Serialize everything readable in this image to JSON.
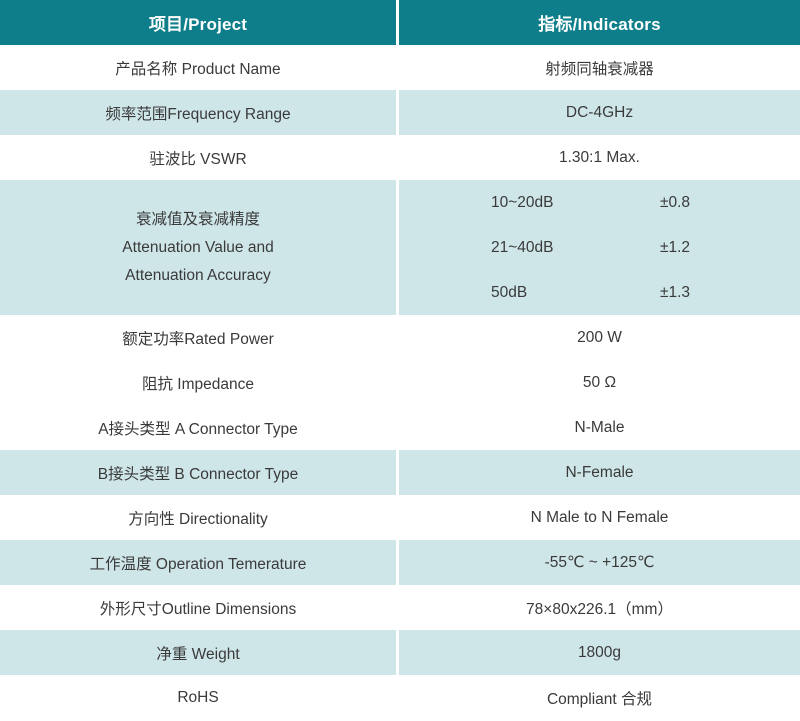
{
  "colors": {
    "header_bg": "#0e7e8a",
    "header_text": "#ffffff",
    "row_highlight_bg": "#cfe6e9",
    "body_text": "#3a3a3a"
  },
  "header": {
    "project_label": "项目/Project",
    "indicators_label": "指标/Indicators"
  },
  "rows": {
    "product_name": {
      "label": "产品名称 Product Name",
      "value": "射频同轴衰减器"
    },
    "frequency_range": {
      "label": "频率范围Frequency Range",
      "value": "DC-4GHz"
    },
    "vswr": {
      "label": "驻波比 VSWR",
      "value": "1.30:1 Max."
    },
    "attenuation": {
      "label_lines": [
        "衰减值及衰减精度",
        "Attenuation Value and",
        "Attenuation Accuracy"
      ],
      "entries": [
        {
          "range": "10~20dB",
          "tolerance": "±0.8"
        },
        {
          "range": "21~40dB",
          "tolerance": "±1.2"
        },
        {
          "range": "50dB",
          "tolerance": "±1.3"
        }
      ]
    },
    "rated_power": {
      "label": "额定功率Rated Power",
      "value": "200 W"
    },
    "impedance": {
      "label": "阻抗 Impedance",
      "value": "50 Ω"
    },
    "a_connector": {
      "label": "A接头类型 A Connector Type",
      "value": "N-Male"
    },
    "b_connector": {
      "label": "B接头类型 B Connector Type",
      "value": "N-Female"
    },
    "directionality": {
      "label": "方向性 Directionality",
      "value": "N Male to N Female"
    },
    "operation_temperature": {
      "label": "工作温度 Operation Temerature",
      "value": "-55℃ ~ +125℃"
    },
    "outline_dimensions": {
      "label": "外形尺寸Outline Dimensions",
      "value": "78×80x226.1（mm）"
    },
    "weight": {
      "label": "净重 Weight",
      "value": "1800g"
    },
    "rohs": {
      "label": "RoHS",
      "value": "Compliant 合规"
    }
  }
}
